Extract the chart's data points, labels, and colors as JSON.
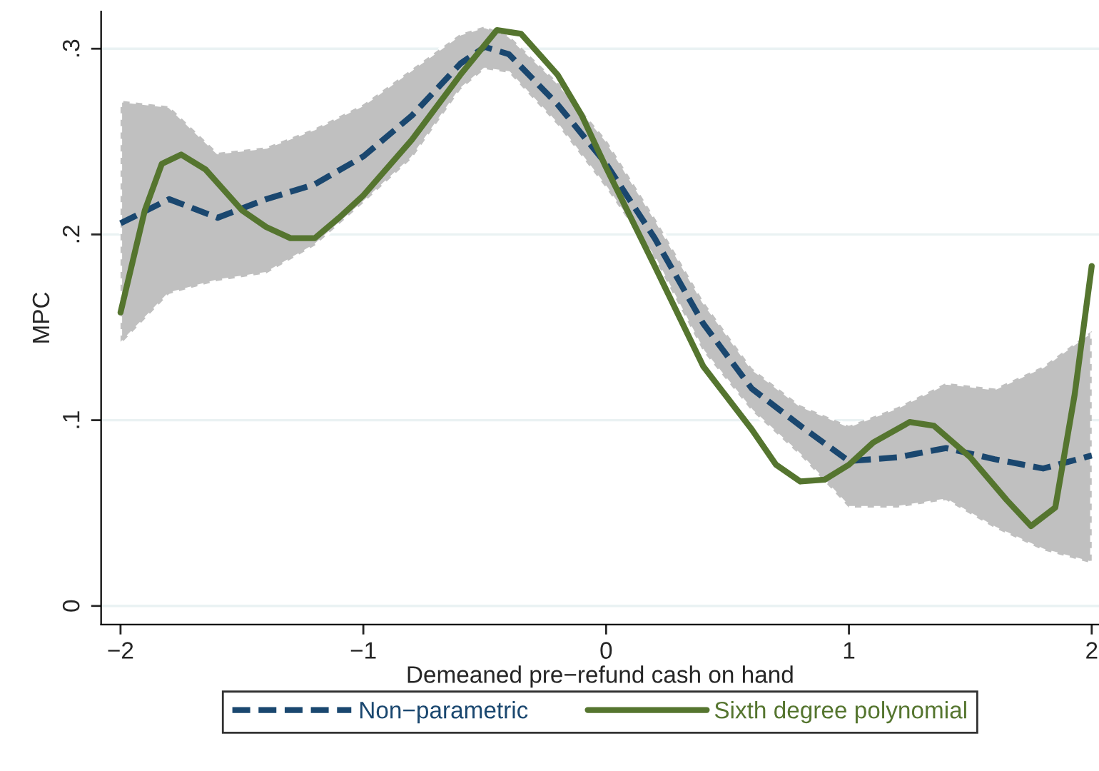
{
  "chart_data": {
    "type": "line",
    "xlabel": "Demeaned pre−refund cash on hand",
    "ylabel": "MPC",
    "xlim": [
      -2.08,
      2.03
    ],
    "ylim": [
      -0.01,
      0.32
    ],
    "xticks": [
      {
        "value": -2,
        "label": "−2"
      },
      {
        "value": -1,
        "label": "−1"
      },
      0,
      1,
      2
    ],
    "yticks": [
      {
        "value": 0,
        "label": "0"
      },
      {
        "value": 0.1,
        "label": ".1"
      },
      {
        "value": 0.2,
        "label": ".2"
      },
      {
        "value": 0.3,
        "label": ".3"
      }
    ],
    "grid": "y",
    "legend": "bottom",
    "series": [
      {
        "name": "Non−parametric",
        "color": "#1a476f",
        "line_style": "dashed",
        "x": [
          -2,
          -1.8,
          -1.6,
          -1.4,
          -1.2,
          -1.0,
          -0.8,
          -0.6,
          -0.5,
          -0.4,
          -0.2,
          0,
          0.2,
          0.4,
          0.6,
          0.8,
          1.0,
          1.2,
          1.4,
          1.6,
          1.8,
          2.0
        ],
        "values": [
          0.206,
          0.219,
          0.209,
          0.219,
          0.227,
          0.242,
          0.264,
          0.292,
          0.301,
          0.297,
          0.27,
          0.238,
          0.198,
          0.152,
          0.117,
          0.097,
          0.078,
          0.08,
          0.085,
          0.079,
          0.074,
          0.081
        ],
        "upper": [
          0.272,
          0.269,
          0.244,
          0.247,
          0.257,
          0.27,
          0.289,
          0.308,
          0.312,
          0.307,
          0.282,
          0.251,
          0.209,
          0.164,
          0.128,
          0.108,
          0.097,
          0.107,
          0.12,
          0.117,
          0.129,
          0.148
        ],
        "lower": [
          0.141,
          0.168,
          0.175,
          0.179,
          0.194,
          0.217,
          0.241,
          0.278,
          0.289,
          0.287,
          0.259,
          0.225,
          0.187,
          0.137,
          0.105,
          0.081,
          0.053,
          0.053,
          0.057,
          0.042,
          0.03,
          0.023
        ]
      },
      {
        "name": "Sixth degree polynomial",
        "color": "#55752f",
        "line_style": "solid",
        "x": [
          -2,
          -1.9,
          -1.83,
          -1.75,
          -1.65,
          -1.5,
          -1.4,
          -1.3,
          -1.2,
          -1.1,
          -1.0,
          -0.8,
          -0.6,
          -0.45,
          -0.35,
          -0.2,
          -0.1,
          0,
          0.2,
          0.4,
          0.6,
          0.7,
          0.8,
          0.9,
          1.0,
          1.1,
          1.25,
          1.35,
          1.5,
          1.65,
          1.75,
          1.85,
          1.93,
          2.0
        ],
        "values": [
          0.158,
          0.213,
          0.238,
          0.243,
          0.235,
          0.213,
          0.204,
          0.198,
          0.198,
          0.209,
          0.221,
          0.251,
          0.286,
          0.31,
          0.308,
          0.286,
          0.264,
          0.236,
          0.183,
          0.129,
          0.095,
          0.076,
          0.067,
          0.068,
          0.076,
          0.088,
          0.099,
          0.097,
          0.08,
          0.057,
          0.043,
          0.053,
          0.114,
          0.183
        ]
      }
    ]
  }
}
